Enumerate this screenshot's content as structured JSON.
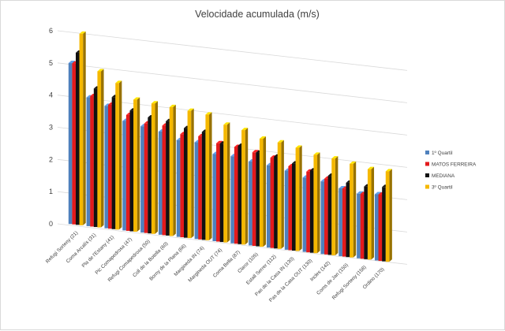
{
  "chart_data": {
    "type": "bar",
    "title": "Velocidade acumulada (m/s)",
    "xlabel": "",
    "ylabel": "",
    "ylim": [
      0,
      6
    ],
    "yticks": [
      0,
      1,
      2,
      3,
      4,
      5,
      6
    ],
    "grid": true,
    "legend_position": "right",
    "categories": [
      "Refugi Sorteny (21)",
      "Coma Arcalís (31)",
      "Pla de l'Estany (41)",
      "Pic Comapedrosa (47)",
      "Refugi Comapedrosa (50)",
      "Coll de la Botella (60)",
      "Borny de la Plana (66)",
      "Margineda IN (74)",
      "Margineda OUT (74)",
      "Coma Bella (87)",
      "Claror (105)",
      "Estall Serrer (112)",
      "Pas de la Casa IN (130)",
      "Pas de la Casa OUT (130)",
      "Incles (142)",
      "Coms de Jan (150)",
      "Refugi Sorteny (158)",
      "Ordino (170)"
    ],
    "series": [
      {
        "name": "1º Quartil",
        "color": "#4f81bd",
        "values": [
          5.0,
          4.0,
          3.8,
          3.4,
          3.3,
          3.2,
          3.0,
          3.0,
          2.7,
          2.7,
          2.6,
          2.55,
          2.45,
          2.3,
          2.25,
          2.1,
          2.0,
          2.05
        ]
      },
      {
        "name": "MATOS FERREIRA",
        "color": "#e31a1c",
        "values": [
          5.0,
          4.05,
          3.85,
          3.6,
          3.4,
          3.4,
          3.2,
          3.2,
          3.05,
          3.0,
          2.9,
          2.8,
          2.6,
          2.5,
          2.35,
          2.1,
          2.0,
          2.05
        ]
      },
      {
        "name": "MEDIANA",
        "color": "#111111",
        "values": [
          5.35,
          4.3,
          4.1,
          3.75,
          3.6,
          3.55,
          3.4,
          3.35,
          3.05,
          3.05,
          2.9,
          2.85,
          2.7,
          2.55,
          2.45,
          2.3,
          2.25,
          2.3
        ]
      },
      {
        "name": "3º Quartil",
        "color": "#f5b800",
        "values": [
          5.95,
          4.85,
          4.55,
          4.1,
          4.05,
          4.0,
          3.95,
          3.9,
          3.65,
          3.55,
          3.35,
          3.3,
          3.2,
          3.05,
          3.0,
          2.9,
          2.8,
          2.8
        ]
      }
    ]
  }
}
